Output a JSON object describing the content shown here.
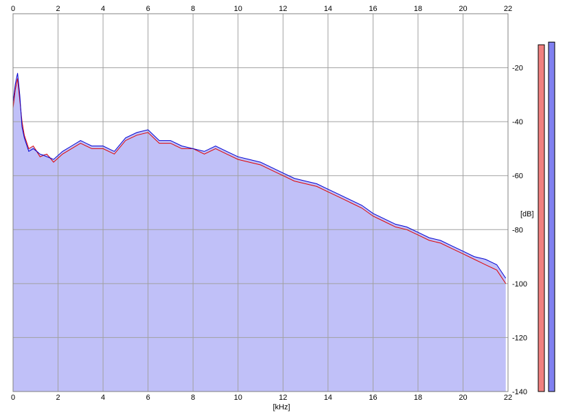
{
  "chart_data": {
    "type": "line",
    "x_unit_label": "[kHz]",
    "y_unit_label": "[dB]",
    "xlim": [
      0,
      22
    ],
    "ylim": [
      -140,
      0
    ],
    "x_ticks": [
      "0",
      "2",
      "4",
      "6",
      "8",
      "10",
      "12",
      "14",
      "16",
      "18",
      "20",
      "22"
    ],
    "y_ticks": [
      "-20",
      "-40",
      "-60",
      "-80",
      "-100",
      "-120",
      "-140"
    ],
    "grid": true,
    "fill_color": "#c0c0f8",
    "series": [
      {
        "color": "#e00000",
        "x": [
          0,
          0.1,
          0.2,
          0.3,
          0.4,
          0.5,
          0.7,
          0.9,
          1.2,
          1.5,
          1.8,
          2.2,
          2.6,
          3.0,
          3.5,
          4.0,
          4.5,
          5.0,
          5.5,
          6.0,
          6.5,
          7.0,
          7.5,
          8.0,
          8.5,
          9.0,
          9.5,
          10.0,
          10.5,
          11.0,
          11.5,
          12.0,
          12.5,
          13.0,
          13.5,
          14.0,
          14.5,
          15.0,
          15.5,
          16.0,
          16.5,
          17.0,
          17.5,
          18.0,
          18.5,
          19.0,
          19.5,
          20.0,
          20.5,
          21.0,
          21.5,
          21.9
        ],
        "values": [
          -35,
          -28,
          -24,
          -32,
          -40,
          -45,
          -50,
          -49,
          -53,
          -52,
          -55,
          -52,
          -50,
          -48,
          -50,
          -50,
          -52,
          -47,
          -45,
          -44,
          -48,
          -48,
          -50,
          -50,
          -52,
          -50,
          -52,
          -54,
          -55,
          -56,
          -58,
          -60,
          -62,
          -63,
          -64,
          -66,
          -68,
          -70,
          -72,
          -75,
          -77,
          -79,
          -80,
          -82,
          -84,
          -85,
          -87,
          -89,
          -91,
          -93,
          -95,
          -100
        ]
      },
      {
        "color": "#0000d0",
        "x": [
          0,
          0.1,
          0.2,
          0.3,
          0.4,
          0.5,
          0.7,
          0.9,
          1.2,
          1.5,
          1.8,
          2.2,
          2.6,
          3.0,
          3.5,
          4.0,
          4.5,
          5.0,
          5.5,
          6.0,
          6.5,
          7.0,
          7.5,
          8.0,
          8.5,
          9.0,
          9.5,
          10.0,
          10.5,
          11.0,
          11.5,
          12.0,
          12.5,
          13.0,
          13.5,
          14.0,
          14.5,
          15.0,
          15.5,
          16.0,
          16.5,
          17.0,
          17.5,
          18.0,
          18.5,
          19.0,
          19.5,
          20.0,
          20.5,
          21.0,
          21.5,
          21.9
        ],
        "values": [
          -33,
          -26,
          -22,
          -30,
          -42,
          -46,
          -51,
          -50,
          -52,
          -53,
          -54,
          -51,
          -49,
          -47,
          -49,
          -49,
          -51,
          -46,
          -44,
          -43,
          -47,
          -47,
          -49,
          -50,
          -51,
          -49,
          -51,
          -53,
          -54,
          -55,
          -57,
          -59,
          -61,
          -62,
          -63,
          -65,
          -67,
          -69,
          -71,
          -74,
          -76,
          -78,
          -79,
          -81,
          -83,
          -84,
          -86,
          -88,
          -90,
          -91,
          -93,
          -98
        ]
      }
    ],
    "channel_levels": [
      {
        "color": "#f08080",
        "level": -11.5
      },
      {
        "color": "#8080f0",
        "level": -10.5
      }
    ]
  }
}
